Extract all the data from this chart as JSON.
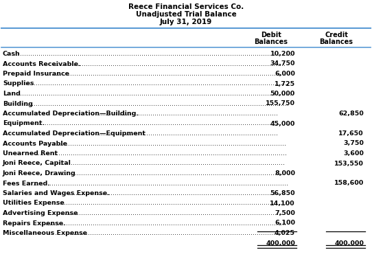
{
  "title_line1": "Reece Financial Services Co.",
  "title_line2": "Unadjusted Trial Balance",
  "title_line3": "July 31, 2019",
  "rows": [
    {
      "account": "Cash",
      "debit": "10,200",
      "credit": ""
    },
    {
      "account": "Accounts Receivable.",
      "debit": "34,750",
      "credit": ""
    },
    {
      "account": "Prepaid Insurance",
      "debit": "6,000",
      "credit": ""
    },
    {
      "account": "Supplies",
      "debit": "1,725",
      "credit": ""
    },
    {
      "account": "Land",
      "debit": "50,000",
      "credit": ""
    },
    {
      "account": "Building",
      "debit": "155,750",
      "credit": ""
    },
    {
      "account": "Accumulated Depreciation—Building.",
      "debit": "",
      "credit": "62,850"
    },
    {
      "account": "Equipment.",
      "debit": "45,000",
      "credit": ""
    },
    {
      "account": "Accumulated Depreciation—Equipment",
      "debit": "",
      "credit": "17,650"
    },
    {
      "account": "Accounts Payable",
      "debit": "",
      "credit": "3,750"
    },
    {
      "account": "Unearned Rent",
      "debit": "",
      "credit": "3,600"
    },
    {
      "account": "Joni Reece, Capital",
      "debit": "",
      "credit": "153,550"
    },
    {
      "account": "Joni Reece, Drawing",
      "debit": "8,000",
      "credit": ""
    },
    {
      "account": "Fees Earned.",
      "debit": "",
      "credit": "158,600"
    },
    {
      "account": "Salaries and Wages Expense.",
      "debit": "56,850",
      "credit": ""
    },
    {
      "account": "Utilities Expense",
      "debit": "14,100",
      "credit": ""
    },
    {
      "account": "Advertising Expense",
      "debit": "7,500",
      "credit": ""
    },
    {
      "account": "Repairs Expense.",
      "debit": "6,100",
      "credit": ""
    },
    {
      "account": "Miscellaneous Expense",
      "debit": "4,025",
      "credit": ""
    }
  ],
  "totals": {
    "debit": "400,000",
    "credit": "400,000"
  },
  "bg_color": "#ffffff",
  "header_line_color": "#5b9bd5",
  "text_color": "#000000",
  "title_font_size": 7.5,
  "header_font_size": 7.0,
  "row_font_size": 6.8
}
